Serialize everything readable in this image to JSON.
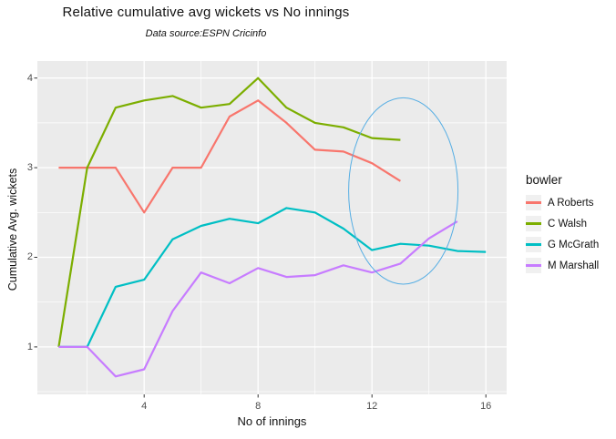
{
  "header": {
    "title": "Relative cumulative avg wickets vs No innings",
    "subtitle": "Data source:ESPN Cricinfo"
  },
  "axes": {
    "x_label": "No of innings",
    "y_label": "Cumulative Avg. wickets"
  },
  "legend": {
    "title": "bowler"
  },
  "chart_data": {
    "type": "line",
    "title": "Relative cumulative avg wickets vs No innings",
    "subtitle": "Data source:ESPN Cricinfo",
    "xlabel": "No of innings",
    "ylabel": "Cumulative Avg. wickets",
    "x_range": [
      0.25,
      16.73
    ],
    "y_range": [
      0.47,
      4.19
    ],
    "x_major_ticks": [
      4,
      8,
      12,
      16
    ],
    "x_minor_ticks": [
      2,
      6,
      10,
      14
    ],
    "y_major_ticks": [
      1,
      2,
      3,
      4
    ],
    "y_minor_ticks": [
      0.5,
      1.5,
      2.5,
      3.5
    ],
    "x_start": 1,
    "x_step": 1,
    "legend_position": "right",
    "grid": true,
    "panel_bg": "#EBEBEB",
    "grid_color": "#FFFFFF",
    "tick_color": "#333333",
    "tick_label_color": "#4D4D4D",
    "series": [
      {
        "name": "A Roberts",
        "color": "#F8766D",
        "values": [
          3.0,
          3.0,
          3.0,
          2.5,
          3.0,
          3.0,
          3.57,
          3.75,
          3.5,
          3.2,
          3.18,
          3.05,
          2.85
        ]
      },
      {
        "name": "C Walsh",
        "color": "#7CAE00",
        "values": [
          1.0,
          3.0,
          3.67,
          3.75,
          3.8,
          3.67,
          3.71,
          4.0,
          3.67,
          3.5,
          3.45,
          3.33,
          3.31
        ]
      },
      {
        "name": "G McGrath",
        "color": "#00BFC4",
        "values": [
          1.0,
          1.0,
          1.67,
          1.75,
          2.2,
          2.35,
          2.43,
          2.38,
          2.55,
          2.5,
          2.32,
          2.08,
          2.15,
          2.13,
          2.07,
          2.06
        ]
      },
      {
        "name": "M Marshall",
        "color": "#C77CFF",
        "values": [
          1.0,
          1.0,
          0.67,
          0.75,
          1.4,
          1.83,
          1.71,
          1.88,
          1.78,
          1.8,
          1.91,
          1.83,
          1.93,
          2.21,
          2.4
        ]
      }
    ],
    "annotation_ellipse": {
      "x": 13.1,
      "y": 2.74,
      "rx": 1.92,
      "ry": 1.04,
      "color": "#56AEE4"
    }
  }
}
